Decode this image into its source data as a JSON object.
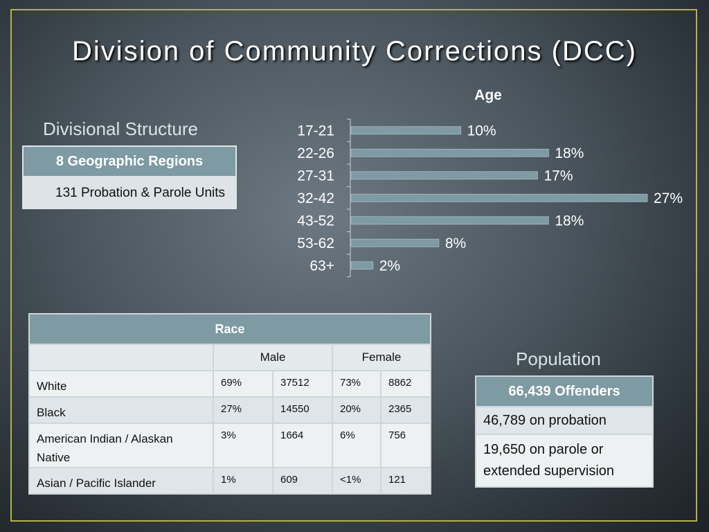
{
  "title": "Division of Community Corrections (DCC)",
  "structure": {
    "heading": "Divisional Structure",
    "header": "8 Geographic Regions",
    "body": "131 Probation & Parole Units"
  },
  "chart_data": {
    "type": "bar",
    "orientation": "horizontal",
    "title": "Age",
    "categories": [
      "17-21",
      "22-26",
      "27-31",
      "32-42",
      "43-52",
      "53-62",
      "63+"
    ],
    "values": [
      10,
      18,
      17,
      27,
      18,
      8,
      2
    ],
    "value_labels": [
      "10%",
      "18%",
      "17%",
      "27%",
      "18%",
      "8%",
      "2%"
    ],
    "unit": "%",
    "xlim": [
      0,
      27
    ],
    "grid": false,
    "legend": "none",
    "bar_color": "#7e9aa3"
  },
  "race": {
    "header": "Race",
    "columns": [
      "Male",
      "Female"
    ],
    "rows": [
      {
        "label": "White",
        "male_pct": "69%",
        "male_n": "37512",
        "female_pct": "73%",
        "female_n": "8862"
      },
      {
        "label": "Black",
        "male_pct": "27%",
        "male_n": "14550",
        "female_pct": "20%",
        "female_n": "2365"
      },
      {
        "label": "American Indian / Alaskan Native",
        "male_pct": "3%",
        "male_n": "1664",
        "female_pct": "6%",
        "female_n": "756"
      },
      {
        "label": "Asian / Pacific Islander",
        "male_pct": "1%",
        "male_n": "609",
        "female_pct": "<1%",
        "female_n": "121"
      }
    ]
  },
  "population": {
    "heading": "Population",
    "header": "66,439 Offenders",
    "row1": "46,789 on probation",
    "row2": "19,650 on parole or extended supervision"
  },
  "colors": {
    "accent": "#7e9aa3",
    "frame": "#b3b343",
    "text_light": "#ffffff"
  }
}
